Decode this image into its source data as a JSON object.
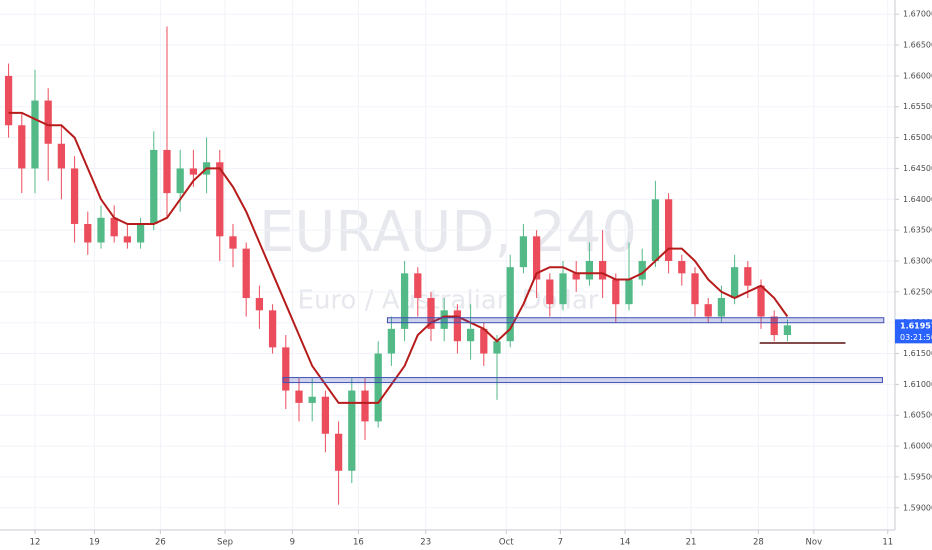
{
  "chart_data": {
    "type": "candlestick",
    "watermark": "EURAUD, 240",
    "watermark_subtitle": "Euro / Australian Dollar",
    "up_color": "#53b987",
    "down_color": "#eb4d5c",
    "open": [
      1.66,
      1.652,
      1.645,
      1.656,
      1.649,
      1.645,
      1.636,
      1.633,
      1.637,
      1.634,
      1.633,
      1.636,
      1.648,
      1.641,
      1.645,
      1.644,
      1.646,
      1.634,
      1.632,
      1.624,
      1.622,
      1.616,
      1.609,
      1.607,
      1.608,
      1.602,
      1.596,
      1.609,
      1.604,
      1.615,
      1.619,
      1.628,
      1.624,
      1.619,
      1.622,
      1.617,
      1.619,
      1.615,
      1.617,
      1.629,
      1.634,
      1.627,
      1.623,
      1.628,
      1.627,
      1.63,
      1.627,
      1.623,
      1.627,
      1.63,
      1.64,
      1.63,
      1.628,
      1.623,
      1.621,
      1.624,
      1.629,
      1.626,
      1.621,
      1.618
    ],
    "high": [
      1.662,
      1.654,
      1.661,
      1.658,
      1.652,
      1.647,
      1.638,
      1.639,
      1.639,
      1.636,
      1.637,
      1.651,
      1.668,
      1.648,
      1.648,
      1.65,
      1.648,
      1.636,
      1.633,
      1.626,
      1.623,
      1.618,
      1.611,
      1.611,
      1.609,
      1.604,
      1.611,
      1.611,
      1.617,
      1.621,
      1.63,
      1.629,
      1.625,
      1.624,
      1.623,
      1.623,
      1.62,
      1.618,
      1.631,
      1.636,
      1.635,
      1.628,
      1.63,
      1.63,
      1.633,
      1.635,
      1.628,
      1.633,
      1.632,
      1.643,
      1.641,
      1.631,
      1.629,
      1.624,
      1.626,
      1.631,
      1.63,
      1.627,
      1.622,
      1.6205
    ],
    "low": [
      1.65,
      1.641,
      1.641,
      1.643,
      1.64,
      1.633,
      1.631,
      1.632,
      1.633,
      1.632,
      1.632,
      1.635,
      1.637,
      1.638,
      1.642,
      1.641,
      1.63,
      1.629,
      1.621,
      1.619,
      1.615,
      1.606,
      1.604,
      1.604,
      1.599,
      1.5905,
      1.594,
      1.601,
      1.603,
      1.613,
      1.617,
      1.621,
      1.617,
      1.617,
      1.615,
      1.614,
      1.613,
      1.6075,
      1.616,
      1.628,
      1.624,
      1.621,
      1.622,
      1.625,
      1.626,
      1.624,
      1.62,
      1.622,
      1.626,
      1.629,
      1.628,
      1.626,
      1.621,
      1.62,
      1.62,
      1.623,
      1.624,
      1.619,
      1.617,
      1.617
    ],
    "close": [
      1.652,
      1.645,
      1.656,
      1.649,
      1.645,
      1.636,
      1.633,
      1.637,
      1.634,
      1.633,
      1.636,
      1.648,
      1.641,
      1.645,
      1.644,
      1.646,
      1.634,
      1.632,
      1.624,
      1.622,
      1.616,
      1.609,
      1.607,
      1.608,
      1.602,
      1.596,
      1.609,
      1.604,
      1.615,
      1.619,
      1.628,
      1.624,
      1.619,
      1.622,
      1.617,
      1.619,
      1.615,
      1.617,
      1.629,
      1.634,
      1.627,
      1.623,
      1.628,
      1.627,
      1.63,
      1.627,
      1.623,
      1.627,
      1.63,
      1.64,
      1.63,
      1.628,
      1.623,
      1.621,
      1.624,
      1.629,
      1.626,
      1.621,
      1.618,
      1.61957
    ],
    "moving_average": {
      "color": "#b71c1c",
      "values": [
        1.654,
        1.654,
        1.653,
        1.652,
        1.652,
        1.65,
        1.645,
        1.64,
        1.637,
        1.636,
        1.636,
        1.636,
        1.637,
        1.64,
        1.643,
        1.645,
        1.645,
        1.642,
        1.638,
        1.633,
        1.628,
        1.623,
        1.618,
        1.613,
        1.61,
        1.607,
        1.607,
        1.607,
        1.607,
        1.61,
        1.613,
        1.618,
        1.62,
        1.621,
        1.621,
        1.62,
        1.619,
        1.617,
        1.619,
        1.623,
        1.628,
        1.629,
        1.629,
        1.628,
        1.628,
        1.628,
        1.627,
        1.627,
        1.628,
        1.63,
        1.632,
        1.632,
        1.63,
        1.627,
        1.625,
        1.624,
        1.625,
        1.626,
        1.624,
        1.621
      ]
    },
    "levels": [
      {
        "value": 1.6204,
        "from": 28.7,
        "to": 66.3,
        "color": "#3f51b5"
      },
      {
        "value": 1.6107,
        "from": 20.8,
        "to": 66.2,
        "color": "#3f51b5"
      },
      {
        "value": 1.6167,
        "from": 56.9,
        "to": 63.4,
        "color": "#5d0f0f"
      }
    ],
    "last_price": 1.61957,
    "countdown": "03:21:50",
    "price_label_color": "#2962ff",
    "ylim": [
      1.5864,
      1.6723
    ],
    "yticks": [
      {
        "value": 1.59,
        "label": "1.59000"
      },
      {
        "value": 1.595,
        "label": "1.59500"
      },
      {
        "value": 1.6,
        "label": "1.60000"
      },
      {
        "value": 1.605,
        "label": "1.60500"
      },
      {
        "value": 1.61,
        "label": "1.61000"
      },
      {
        "value": 1.615,
        "label": "1.61500"
      },
      {
        "value": 1.62,
        "label": "1.62000"
      },
      {
        "value": 1.625,
        "label": "1.62500"
      },
      {
        "value": 1.63,
        "label": "1.63000"
      },
      {
        "value": 1.635,
        "label": "1.63500"
      },
      {
        "value": 1.64,
        "label": "1.64000"
      },
      {
        "value": 1.645,
        "label": "1.64500"
      },
      {
        "value": 1.65,
        "label": "1.65000"
      },
      {
        "value": 1.655,
        "label": "1.65500"
      },
      {
        "value": 1.66,
        "label": "1.66000"
      },
      {
        "value": 1.665,
        "label": "1.66500"
      },
      {
        "value": 1.67,
        "label": "1.67000"
      }
    ],
    "xlim": [
      -0.65,
      67.15
    ],
    "xticks": [
      {
        "value": 2,
        "label": "12"
      },
      {
        "value": 6.5,
        "label": "19"
      },
      {
        "value": 11.5,
        "label": "26"
      },
      {
        "value": 16.4,
        "label": "Sep"
      },
      {
        "value": 21.5,
        "label": "9"
      },
      {
        "value": 26.5,
        "label": "16"
      },
      {
        "value": 31.6,
        "label": "23"
      },
      {
        "value": 37.7,
        "label": "Oct"
      },
      {
        "value": 41.8,
        "label": "7"
      },
      {
        "value": 46.7,
        "label": "14"
      },
      {
        "value": 51.7,
        "label": "21"
      },
      {
        "value": 56.8,
        "label": "28"
      },
      {
        "value": 61,
        "label": "Nov"
      },
      {
        "value": 66.6,
        "label": "11"
      }
    ],
    "grid": true
  }
}
